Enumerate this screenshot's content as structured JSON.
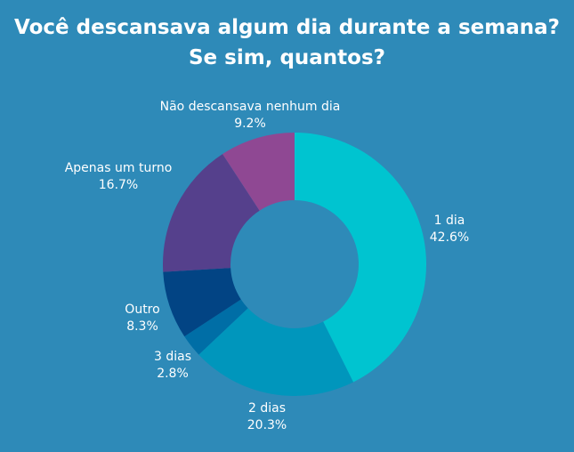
{
  "chart_data": {
    "type": "pie",
    "donut": true,
    "title": "Você descansava algum dia durante a semana?",
    "subtitle": "Se sim, quantos?",
    "slices": [
      {
        "label": "1 dia",
        "value": 42.6,
        "display": "42.6%",
        "color": "#00c4d0"
      },
      {
        "label": "2 dias",
        "value": 20.3,
        "display": "20.3%",
        "color": "#0096bc"
      },
      {
        "label": "3 dias",
        "value": 2.8,
        "display": "2.8%",
        "color": "#006ea6"
      },
      {
        "label": "Outro",
        "value": 8.3,
        "display": "8.3%",
        "color": "#024484"
      },
      {
        "label": "Apenas um turno",
        "value": 16.7,
        "display": "16.7%",
        "color": "#55408c"
      },
      {
        "label": "Não descansava nenhum dia",
        "value": 9.2,
        "display": "9.2%",
        "color": "#8f4893"
      }
    ]
  }
}
